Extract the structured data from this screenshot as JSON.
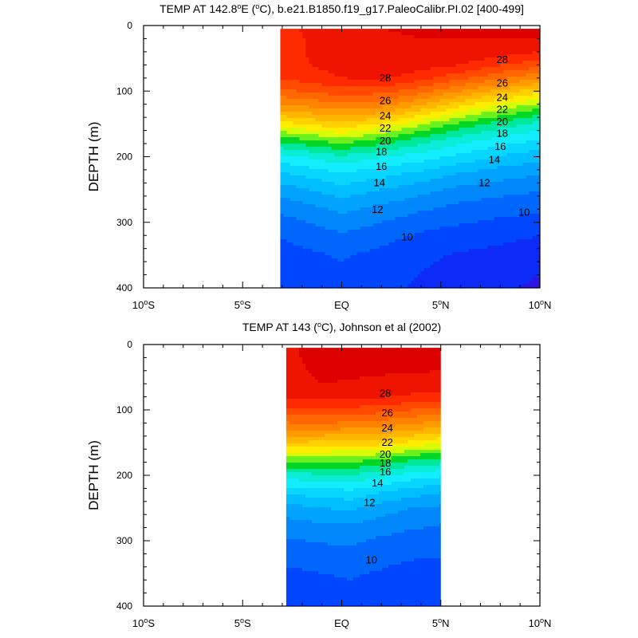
{
  "chart_data": [
    {
      "type": "contour",
      "title": "TEMP AT 142.8°E (°C), b.e21.B1850.f19_g17.PaleoCalibr.PI.02 [400-499]",
      "title_parts": {
        "pre": "TEMP AT 142.8",
        "sup1": "o",
        "mid": "E (",
        "sup2": "o",
        "post": "C), b.e21.B1850.f19_g17.PaleoCalibr.PI.02 [400-499]"
      },
      "ylabel": "DEPTH (m)",
      "xlim": [
        -10,
        10
      ],
      "ylim": [
        400,
        0
      ],
      "y_ticks": [
        0,
        100,
        200,
        300,
        400
      ],
      "x_ticks": [
        {
          "value": -10,
          "num": "10",
          "sup": "o",
          "dir": "S"
        },
        {
          "value": -5,
          "num": "5",
          "sup": "o",
          "dir": "S"
        },
        {
          "value": 0,
          "num": "EQ",
          "sup": "",
          "dir": ""
        },
        {
          "value": 5,
          "num": "5",
          "sup": "o",
          "dir": "N"
        },
        {
          "value": 10,
          "num": "10",
          "sup": "o",
          "dir": "N"
        }
      ],
      "data_extent": {
        "x": [
          -3.1,
          10
        ],
        "depth": [
          5,
          400
        ]
      },
      "contour_interval": 1,
      "contour_labels": [
        {
          "text": "28",
          "x": 8.1,
          "depth": 52
        },
        {
          "text": "28",
          "x": 2.2,
          "depth": 80
        },
        {
          "text": "26",
          "x": 8.1,
          "depth": 88
        },
        {
          "text": "26",
          "x": 2.2,
          "depth": 115
        },
        {
          "text": "24",
          "x": 8.1,
          "depth": 110
        },
        {
          "text": "24",
          "x": 2.2,
          "depth": 138
        },
        {
          "text": "22",
          "x": 8.1,
          "depth": 128
        },
        {
          "text": "22",
          "x": 2.2,
          "depth": 157
        },
        {
          "text": "20",
          "x": 8.1,
          "depth": 147
        },
        {
          "text": "20",
          "x": 2.2,
          "depth": 176
        },
        {
          "text": "18",
          "x": 8.1,
          "depth": 165
        },
        {
          "text": "18",
          "x": 2.0,
          "depth": 193
        },
        {
          "text": "16",
          "x": 8.0,
          "depth": 185
        },
        {
          "text": "16",
          "x": 2.0,
          "depth": 215
        },
        {
          "text": "14",
          "x": 7.7,
          "depth": 205
        },
        {
          "text": "14",
          "x": 1.9,
          "depth": 240
        },
        {
          "text": "12",
          "x": 7.2,
          "depth": 240
        },
        {
          "text": "12",
          "x": 1.8,
          "depth": 281
        },
        {
          "text": "10",
          "x": 9.2,
          "depth": 285
        },
        {
          "text": "10",
          "x": 3.3,
          "depth": 323
        }
      ],
      "profiles": [
        {
          "x": -3.1,
          "values": [
            27.7,
            27.6,
            27.6,
            27.5,
            27.0,
            25.8,
            23.5,
            20.6,
            17.3,
            14.6,
            12.9,
            11.5,
            10.4,
            9.6,
            9.0,
            8.6,
            8.2
          ]
        },
        {
          "x": 0,
          "values": [
            28.7,
            28.6,
            28.6,
            28.5,
            28.0,
            26.6,
            24.4,
            21.8,
            18.6,
            15.8,
            14.0,
            12.6,
            11.4,
            10.5,
            9.7,
            9.1,
            8.6
          ]
        },
        {
          "x": 2,
          "values": [
            29.0,
            28.9,
            28.9,
            28.8,
            28.2,
            26.4,
            24.0,
            20.9,
            17.6,
            15.1,
            13.4,
            12.0,
            10.9,
            10.0,
            9.3,
            8.7,
            8.3
          ]
        },
        {
          "x": 4,
          "values": [
            29.1,
            29.0,
            29.0,
            28.5,
            27.4,
            25.4,
            22.6,
            19.2,
            16.5,
            14.5,
            12.8,
            11.4,
            10.3,
            9.4,
            8.7,
            8.2,
            7.8
          ]
        },
        {
          "x": 6,
          "values": [
            29.1,
            29.0,
            28.9,
            28.0,
            26.3,
            24.0,
            20.8,
            17.7,
            15.4,
            13.7,
            12.0,
            10.7,
            9.8,
            9.1,
            8.4,
            7.9,
            7.5
          ]
        },
        {
          "x": 8,
          "values": [
            29.1,
            29.0,
            28.6,
            27.1,
            25.2,
            22.6,
            19.4,
            16.6,
            14.6,
            12.9,
            11.5,
            10.4,
            9.5,
            8.8,
            8.2,
            7.7,
            7.2
          ]
        },
        {
          "x": 10,
          "values": [
            29.1,
            29.0,
            28.0,
            26.4,
            24.2,
            21.4,
            18.2,
            15.7,
            13.9,
            12.4,
            11.1,
            10.1,
            9.3,
            8.6,
            7.9,
            7.3,
            6.8
          ]
        }
      ]
    },
    {
      "type": "contour",
      "title": "TEMP AT 143 (°C), Johnson et al (2002)",
      "title_parts": {
        "pre": "TEMP AT 143 (",
        "sup1": "o",
        "mid": "C), Johnson et al (2002)",
        "sup2": "",
        "post": ""
      },
      "ylabel": "DEPTH (m)",
      "xlim": [
        -10,
        10
      ],
      "ylim": [
        400,
        0
      ],
      "y_ticks": [
        0,
        100,
        200,
        300,
        400
      ],
      "x_ticks": [
        {
          "value": -10,
          "num": "10",
          "sup": "o",
          "dir": "S"
        },
        {
          "value": -5,
          "num": "5",
          "sup": "o",
          "dir": "S"
        },
        {
          "value": 0,
          "num": "EQ",
          "sup": "",
          "dir": ""
        },
        {
          "value": 5,
          "num": "5",
          "sup": "o",
          "dir": "N"
        },
        {
          "value": 10,
          "num": "10",
          "sup": "o",
          "dir": "N"
        }
      ],
      "data_extent": {
        "x": [
          -2.8,
          5
        ],
        "depth": [
          5,
          400
        ]
      },
      "contour_interval": 1,
      "contour_labels": [
        {
          "text": "28",
          "x": 2.2,
          "depth": 75
        },
        {
          "text": "26",
          "x": 2.3,
          "depth": 105
        },
        {
          "text": "24",
          "x": 2.3,
          "depth": 128
        },
        {
          "text": "22",
          "x": 2.3,
          "depth": 150
        },
        {
          "text": "20",
          "x": 2.2,
          "depth": 168
        },
        {
          "text": "18",
          "x": 2.2,
          "depth": 182
        },
        {
          "text": "16",
          "x": 2.2,
          "depth": 195
        },
        {
          "text": "14",
          "x": 1.8,
          "depth": 212
        },
        {
          "text": "12",
          "x": 1.4,
          "depth": 242
        },
        {
          "text": "10",
          "x": 1.5,
          "depth": 330
        }
      ],
      "profiles": [
        {
          "x": -2.8,
          "values": [
            28.8,
            28.8,
            28.7,
            28.6,
            28.2,
            26.8,
            24.5,
            22.0,
            18.6,
            15.6,
            13.3,
            11.6,
            10.6,
            9.9,
            9.3,
            8.8,
            8.3
          ]
        },
        {
          "x": -1,
          "values": [
            29.4,
            29.3,
            29.2,
            29.0,
            28.4,
            26.9,
            24.6,
            21.8,
            18.5,
            15.8,
            13.6,
            12.0,
            10.9,
            10.1,
            9.5,
            9.0,
            8.5
          ]
        },
        {
          "x": 0.5,
          "values": [
            29.3,
            29.3,
            29.2,
            28.9,
            28.3,
            26.7,
            24.4,
            21.7,
            18.5,
            15.9,
            13.8,
            12.2,
            11.0,
            10.2,
            9.6,
            9.1,
            8.6
          ]
        },
        {
          "x": 2,
          "values": [
            29.3,
            29.2,
            29.1,
            28.8,
            28.1,
            26.4,
            24.2,
            21.5,
            18.0,
            15.3,
            13.1,
            11.5,
            10.5,
            9.8,
            9.3,
            8.9,
            8.4
          ]
        },
        {
          "x": 3.5,
          "values": [
            29.3,
            29.2,
            29.1,
            28.7,
            27.8,
            26.0,
            23.7,
            20.8,
            17.2,
            14.6,
            12.5,
            11.0,
            10.2,
            9.6,
            9.1,
            8.6,
            8.1
          ]
        },
        {
          "x": 5,
          "values": [
            29.2,
            29.1,
            29.0,
            28.5,
            27.6,
            25.6,
            23.2,
            20.2,
            16.8,
            14.2,
            12.1,
            10.8,
            10.0,
            9.5,
            9.0,
            8.5,
            8.0
          ]
        }
      ]
    }
  ]
}
